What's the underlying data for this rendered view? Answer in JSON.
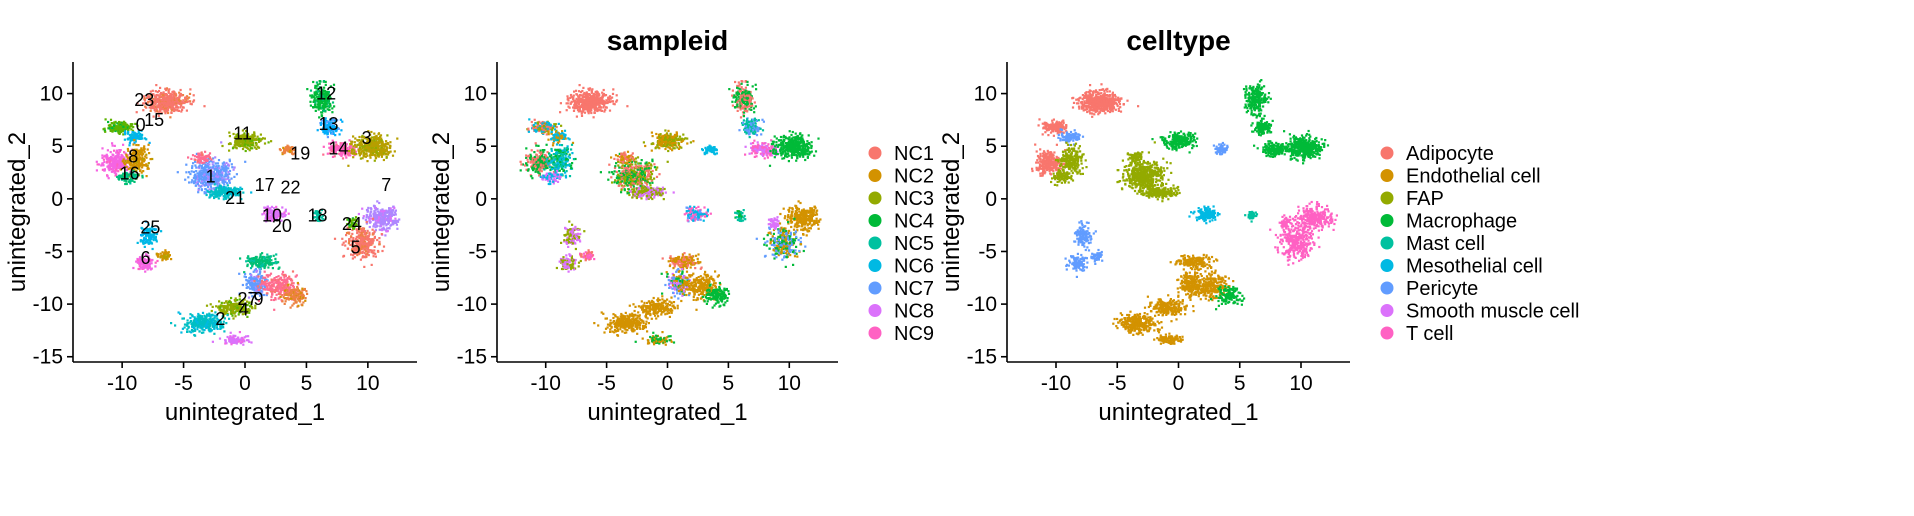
{
  "chart_data": [
    {
      "type": "scatter",
      "panel": "clusters",
      "title": "",
      "xlabel": "unintegrated_1",
      "ylabel": "unintegrated_2",
      "xlim": [
        -14,
        14
      ],
      "ylim": [
        -15.5,
        13
      ],
      "xticks": [
        -10,
        -5,
        0,
        5,
        10
      ],
      "yticks": [
        -15,
        -10,
        -5,
        0,
        5,
        10
      ],
      "grid": false,
      "color_by": "cluster",
      "cluster_labels": [
        {
          "text": "0",
          "x": -8.5,
          "y": 7.0
        },
        {
          "text": "1",
          "x": -2.8,
          "y": 2.1
        },
        {
          "text": "2",
          "x": -2.0,
          "y": -11.4
        },
        {
          "text": "3",
          "x": 9.9,
          "y": 5.8
        },
        {
          "text": "4",
          "x": -0.1,
          "y": -10.5
        },
        {
          "text": "5",
          "x": 9.0,
          "y": -4.6
        },
        {
          "text": "6",
          "x": -8.1,
          "y": -5.6
        },
        {
          "text": "7",
          "x": 11.5,
          "y": 1.3
        },
        {
          "text": "8",
          "x": -9.1,
          "y": 4.0
        },
        {
          "text": "9",
          "x": 1.1,
          "y": -9.5
        },
        {
          "text": "10",
          "x": 2.2,
          "y": -1.6
        },
        {
          "text": "11",
          "x": -0.2,
          "y": 6.2
        },
        {
          "text": "12",
          "x": 6.6,
          "y": 10.0
        },
        {
          "text": "13",
          "x": 6.8,
          "y": 7.1
        },
        {
          "text": "14",
          "x": 7.6,
          "y": 4.8
        },
        {
          "text": "15",
          "x": -7.4,
          "y": 7.5
        },
        {
          "text": "16",
          "x": -9.4,
          "y": 2.4
        },
        {
          "text": "17",
          "x": 1.6,
          "y": 1.3
        },
        {
          "text": "18",
          "x": 5.9,
          "y": -1.6
        },
        {
          "text": "19",
          "x": 4.5,
          "y": 4.3
        },
        {
          "text": "20",
          "x": 3.0,
          "y": -2.6
        },
        {
          "text": "21",
          "x": -0.8,
          "y": 0.1
        },
        {
          "text": "22",
          "x": 3.7,
          "y": 1.1
        },
        {
          "text": "23",
          "x": -8.2,
          "y": 9.4
        },
        {
          "text": "24",
          "x": 8.7,
          "y": -2.4
        },
        {
          "text": "25",
          "x": -7.7,
          "y": -2.7
        },
        {
          "text": "27",
          "x": 0.2,
          "y": -9.5
        }
      ]
    },
    {
      "type": "scatter",
      "panel": "sampleid",
      "title": "sampleid",
      "xlabel": "unintegrated_1",
      "ylabel": "unintegrated_2",
      "xlim": [
        -14,
        14
      ],
      "ylim": [
        -15.5,
        13
      ],
      "xticks": [
        -10,
        -5,
        0,
        5,
        10
      ],
      "yticks": [
        -15,
        -10,
        -5,
        0,
        5,
        10
      ],
      "grid": false,
      "legend_position": "right",
      "series": [
        {
          "name": "NC1",
          "color": "#F8766D"
        },
        {
          "name": "NC2",
          "color": "#D39200"
        },
        {
          "name": "NC3",
          "color": "#93AA00"
        },
        {
          "name": "NC4",
          "color": "#00BA38"
        },
        {
          "name": "NC5",
          "color": "#00C19F"
        },
        {
          "name": "NC6",
          "color": "#00B9E3"
        },
        {
          "name": "NC7",
          "color": "#619CFF"
        },
        {
          "name": "NC8",
          "color": "#DB72FB"
        },
        {
          "name": "NC9",
          "color": "#FF61C3"
        }
      ]
    },
    {
      "type": "scatter",
      "panel": "celltype",
      "title": "celltype",
      "xlabel": "unintegrated_1",
      "ylabel": "unintegrated_2",
      "xlim": [
        -14,
        14
      ],
      "ylim": [
        -15.5,
        13
      ],
      "xticks": [
        -10,
        -5,
        0,
        5,
        10
      ],
      "yticks": [
        -15,
        -10,
        -5,
        0,
        5,
        10
      ],
      "grid": false,
      "legend_position": "right",
      "series": [
        {
          "name": "Adipocyte",
          "color": "#F8766D"
        },
        {
          "name": "Endothelial cell",
          "color": "#D39200"
        },
        {
          "name": "FAP",
          "color": "#93AA00"
        },
        {
          "name": "Macrophage",
          "color": "#00BA38"
        },
        {
          "name": "Mast cell",
          "color": "#00C19F"
        },
        {
          "name": "Mesothelial cell",
          "color": "#00B9E3"
        },
        {
          "name": "Pericyte",
          "color": "#619CFF"
        },
        {
          "name": "Smooth muscle cell",
          "color": "#DB72FB"
        },
        {
          "name": "T cell",
          "color": "#FF61C3"
        }
      ]
    }
  ]
}
